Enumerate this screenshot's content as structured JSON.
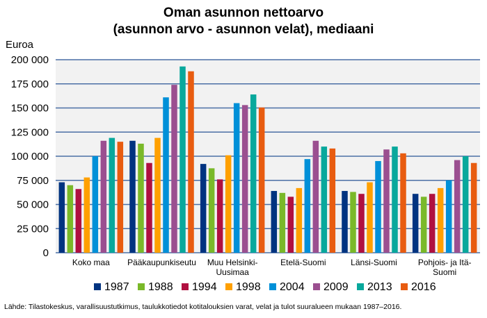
{
  "chart_data": {
    "type": "bar",
    "title": "Oman asunnon nettoarvo",
    "subtitle": "(asunnon arvo - asunnon velat), mediaani",
    "ylabel": "Euroa",
    "xlabel": "",
    "ylim": [
      0,
      200000
    ],
    "yticks": [
      0,
      25000,
      50000,
      75000,
      100000,
      125000,
      150000,
      175000,
      200000
    ],
    "ytick_labels": [
      "0",
      "25 000",
      "50 000",
      "75 000",
      "100 000",
      "125 000",
      "150 000",
      "175 000",
      "200 000"
    ],
    "grid": true,
    "legend_position": "bottom",
    "categories": [
      [
        "Koko maa"
      ],
      [
        "Pääkaupunkiseutu"
      ],
      [
        "Muu Helsinki-",
        "Uusimaa"
      ],
      [
        "Etelä-Suomi"
      ],
      [
        "Länsi-Suomi"
      ],
      [
        "Pohjois- ja Itä-",
        "Suomi"
      ]
    ],
    "series": [
      {
        "name": "1987",
        "color": "#003380",
        "values": [
          73000,
          116000,
          92000,
          64000,
          64000,
          61000
        ]
      },
      {
        "name": "1988",
        "color": "#7ab929",
        "values": [
          70000,
          113000,
          87500,
          62000,
          63000,
          58000
        ]
      },
      {
        "name": "1994",
        "color": "#b01040",
        "values": [
          66000,
          93000,
          76000,
          58000,
          61000,
          61000
        ]
      },
      {
        "name": "1998",
        "color": "#ffa000",
        "values": [
          78000,
          119000,
          101000,
          67000,
          73000,
          67000
        ]
      },
      {
        "name": "2004",
        "color": "#0090d8",
        "values": [
          100000,
          161000,
          155000,
          97000,
          95000,
          75000
        ]
      },
      {
        "name": "2009",
        "color": "#9b4f90",
        "values": [
          116000,
          174000,
          153000,
          116000,
          107000,
          96000
        ]
      },
      {
        "name": "2013",
        "color": "#08a89c",
        "values": [
          119000,
          193000,
          164000,
          110000,
          110000,
          100000
        ]
      },
      {
        "name": "2016",
        "color": "#e85c10",
        "values": [
          115000,
          188000,
          150500,
          108000,
          103000,
          93000
        ]
      }
    ]
  },
  "source": "Lähde: Tilastokeskus, varallisuustutkimus, taulukkotiedot kotitalouksien varat, velat ja tulot suuralueen mukaan 1987–2016."
}
